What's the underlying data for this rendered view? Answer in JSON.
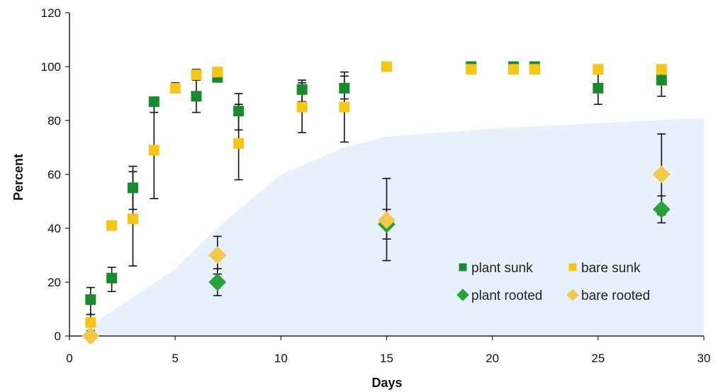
{
  "chart_data": {
    "type": "scatter",
    "title": "",
    "xlabel": "Days",
    "ylabel": "Percent",
    "xlim": [
      0,
      30
    ],
    "ylim": [
      0,
      120
    ],
    "x_ticks": [
      0,
      5,
      10,
      15,
      20,
      25,
      30
    ],
    "y_ticks": [
      0,
      20,
      40,
      60,
      80,
      100,
      120
    ],
    "grid": false,
    "legend_position": "bottom-right inside plot",
    "background_band": {
      "color": "#e8f0fb",
      "upper_curve": [
        [
          1,
          4
        ],
        [
          5,
          25
        ],
        [
          7,
          40
        ],
        [
          10,
          60
        ],
        [
          13,
          70
        ],
        [
          15,
          74
        ],
        [
          20,
          77
        ],
        [
          25,
          79
        ],
        [
          30,
          81
        ]
      ]
    },
    "series": [
      {
        "name": "plant sunk",
        "marker": "square",
        "color": "#1a8a2e",
        "points": [
          {
            "x": 1,
            "y": 13.5,
            "lo": 8,
            "hi": 18
          },
          {
            "x": 2,
            "y": 21.5,
            "lo": 16.5,
            "hi": 25.5
          },
          {
            "x": 3,
            "y": 55,
            "lo": 47,
            "hi": 63
          },
          {
            "x": 4,
            "y": 87,
            "lo": 83,
            "hi": 88
          },
          {
            "x": 6,
            "y": 89,
            "lo": 83,
            "hi": 95
          },
          {
            "x": 7,
            "y": 96,
            "lo": 96,
            "hi": 96
          },
          {
            "x": 8,
            "y": 83.5,
            "lo": 76.5,
            "hi": 90
          },
          {
            "x": 11,
            "y": 91.5,
            "lo": 87,
            "hi": 95
          },
          {
            "x": 13,
            "y": 92,
            "lo": 88,
            "hi": 96.5
          },
          {
            "x": 19,
            "y": 100,
            "lo": 100,
            "hi": 100
          },
          {
            "x": 21,
            "y": 100,
            "lo": 100,
            "hi": 100
          },
          {
            "x": 22,
            "y": 100,
            "lo": 100,
            "hi": 100
          },
          {
            "x": 25,
            "y": 92,
            "lo": 86,
            "hi": 98
          },
          {
            "x": 28,
            "y": 95,
            "lo": 89,
            "hi": 100
          }
        ]
      },
      {
        "name": "bare sunk",
        "marker": "square",
        "color": "#f5c518",
        "points": [
          {
            "x": 1,
            "y": 5,
            "lo": 2,
            "hi": 8
          },
          {
            "x": 2,
            "y": 41
          },
          {
            "x": 3,
            "y": 43.5,
            "lo": 26,
            "hi": 61
          },
          {
            "x": 4,
            "y": 69,
            "lo": 51,
            "hi": 86
          },
          {
            "x": 5,
            "y": 92,
            "lo": 92,
            "hi": 94
          },
          {
            "x": 6,
            "y": 97,
            "lo": 97,
            "hi": 99
          },
          {
            "x": 7,
            "y": 98
          },
          {
            "x": 8,
            "y": 71.5,
            "lo": 58,
            "hi": 86
          },
          {
            "x": 11,
            "y": 85,
            "lo": 75.5,
            "hi": 94
          },
          {
            "x": 13,
            "y": 85,
            "lo": 72,
            "hi": 98
          },
          {
            "x": 15,
            "y": 100
          },
          {
            "x": 19,
            "y": 99
          },
          {
            "x": 21,
            "y": 99
          },
          {
            "x": 22,
            "y": 99
          },
          {
            "x": 25,
            "y": 99
          },
          {
            "x": 28,
            "y": 99
          }
        ]
      },
      {
        "name": "plant rooted",
        "marker": "diamond",
        "color": "#27a33a",
        "points": [
          {
            "x": 7,
            "y": 20,
            "lo": 15,
            "hi": 25
          },
          {
            "x": 15,
            "y": 41.5,
            "lo": 36,
            "hi": 47
          },
          {
            "x": 28,
            "y": 47,
            "lo": 42,
            "hi": 52
          }
        ]
      },
      {
        "name": "bare rooted",
        "marker": "diamond",
        "color": "#f2c94c",
        "points": [
          {
            "x": 1,
            "y": 0
          },
          {
            "x": 7,
            "y": 30,
            "lo": 23,
            "hi": 37
          },
          {
            "x": 15,
            "y": 43,
            "lo": 28,
            "hi": 58.5
          },
          {
            "x": 28,
            "y": 60,
            "lo": 45,
            "hi": 75
          }
        ]
      }
    ]
  }
}
